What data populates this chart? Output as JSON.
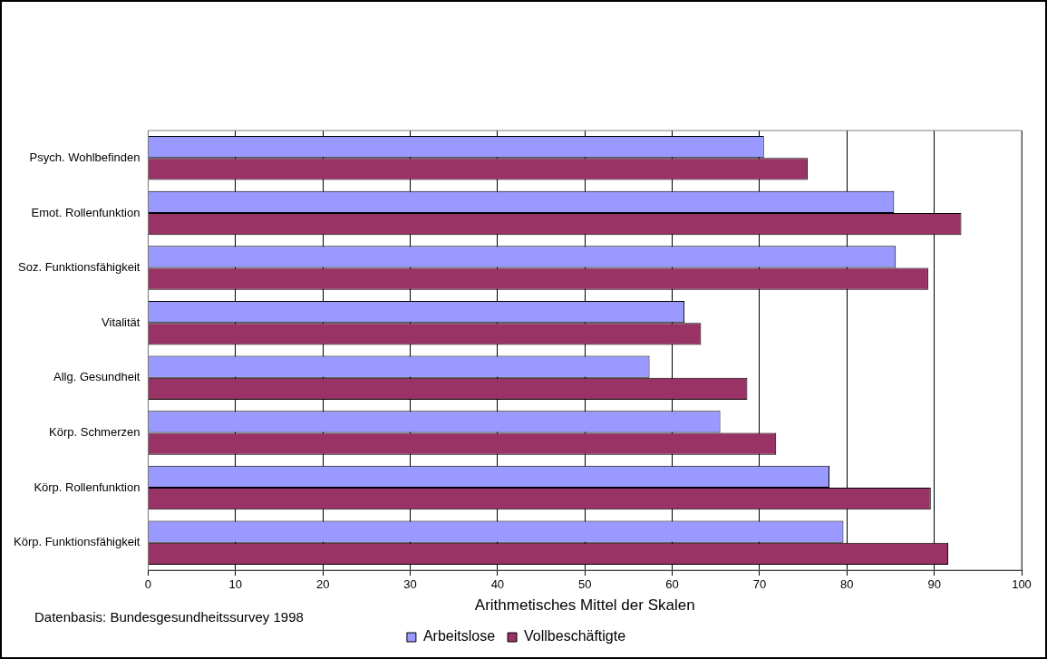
{
  "chart_data": {
    "type": "bar",
    "orientation": "horizontal",
    "xlabel": "Arithmetisches Mittel der Skalen",
    "categories": [
      "Psych. Wohlbefinden",
      "Emot. Rollenfunktion",
      "Soz. Funktionsfähigkeit",
      "Vitalität",
      "Allg. Gesundheit",
      "Körp. Schmerzen",
      "Körp. Rollenfunktion",
      "Körp. Funktionsfähigkeit"
    ],
    "series": [
      {
        "name": "Arbeitslose",
        "color": "#9999ff",
        "values": [
          70.5,
          85.4,
          85.6,
          61.4,
          57.4,
          65.5,
          78,
          79.6
        ]
      },
      {
        "name": "Vollbeschäftigte",
        "color": "#993366",
        "values": [
          75.5,
          93.1,
          89.3,
          63.3,
          68.6,
          71.9,
          89.6,
          91.6
        ]
      }
    ],
    "xlim": [
      0,
      100
    ],
    "xticks": [
      0,
      10,
      20,
      30,
      40,
      50,
      60,
      70,
      80,
      90,
      100
    ],
    "grid": "x",
    "legend": "bottom",
    "annotations": [
      "Datenbasis: Bundesgesundheitssurvey 1998"
    ]
  }
}
